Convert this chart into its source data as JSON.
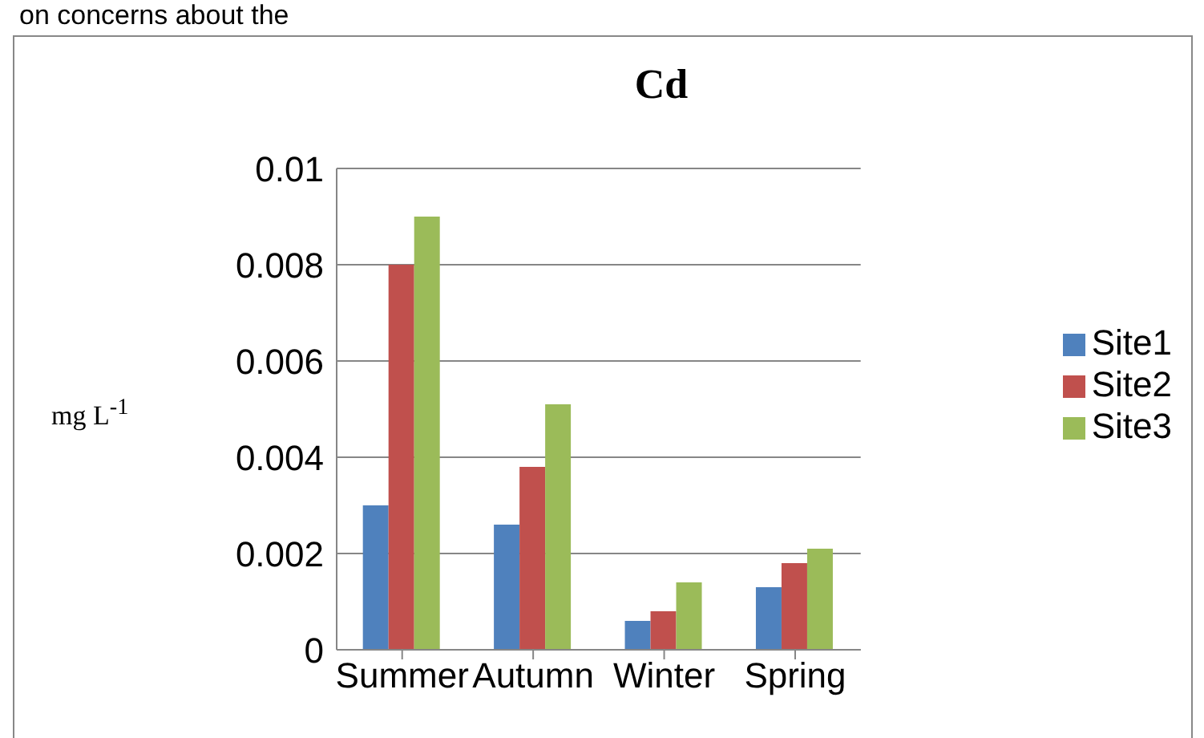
{
  "chart_data": {
    "type": "bar",
    "title": "Cd",
    "ylabel": "mg L$^{-1}$",
    "annotations": [
      "on concerns about the"
    ],
    "categories": [
      "Summer",
      "Autumn",
      "Winter",
      "Spring"
    ],
    "series": [
      {
        "name": "Site1",
        "color": "#4f81bd",
        "values": [
          0.003,
          0.0026,
          0.0006,
          0.0013
        ]
      },
      {
        "name": "Site2",
        "color": "#c0504d",
        "values": [
          0.008,
          0.0038,
          0.0008,
          0.0018
        ]
      },
      {
        "name": "Site3",
        "color": "#9bbb59",
        "values": [
          0.009,
          0.0051,
          0.0014,
          0.0021
        ]
      }
    ],
    "ylim": [
      0,
      0.01
    ],
    "yticks": [
      0,
      0.002,
      0.004,
      0.006,
      0.008,
      0.01
    ],
    "grid": "y",
    "legend": "right"
  }
}
